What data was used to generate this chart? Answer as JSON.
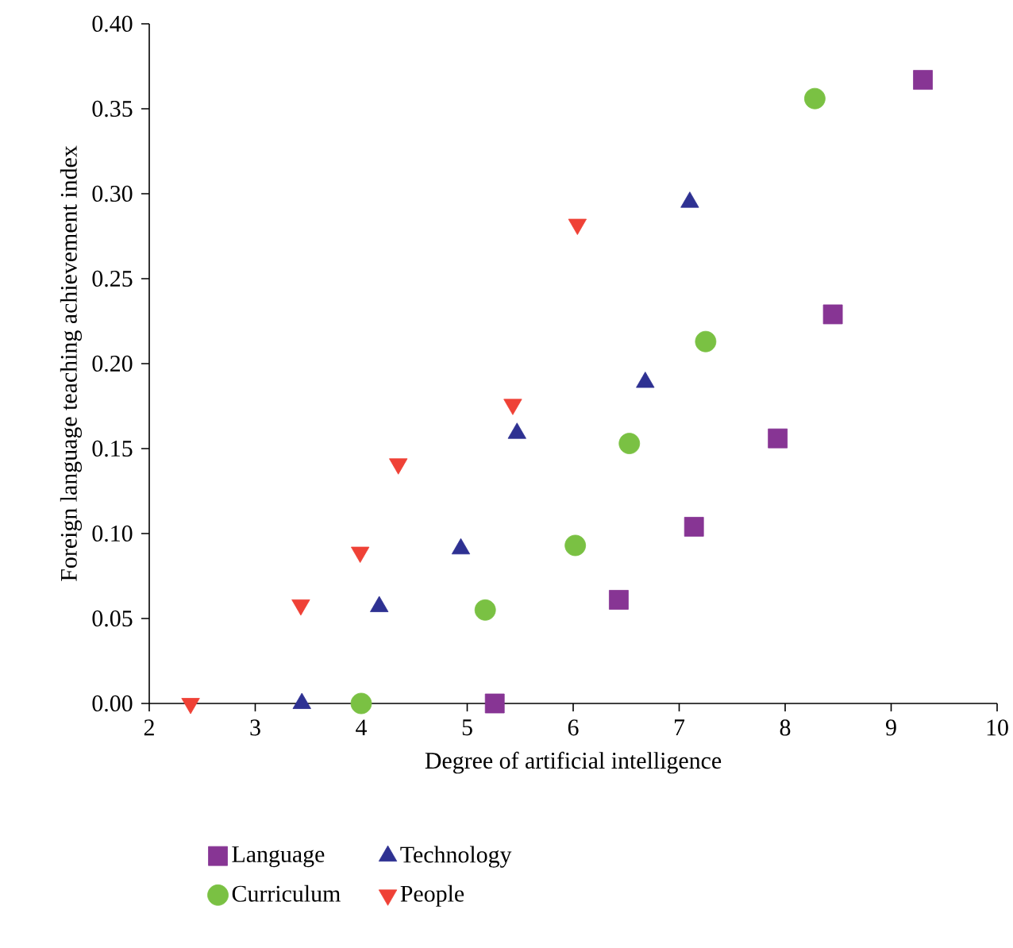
{
  "chart_data": {
    "type": "scatter",
    "xlabel": "Degree of artificial intelligence",
    "ylabel": "Foreign language teaching achievement index",
    "xlim": [
      2,
      10
    ],
    "ylim": [
      0,
      0.4
    ],
    "xticks": [
      2,
      3,
      4,
      5,
      6,
      7,
      8,
      9,
      10
    ],
    "yticks": [
      {
        "value": 0,
        "label": "0.00"
      },
      {
        "value": 0.05,
        "label": "0.05"
      },
      {
        "value": 0.1,
        "label": "0.10"
      },
      {
        "value": 0.15,
        "label": "0.15"
      },
      {
        "value": 0.2,
        "label": "0.20"
      },
      {
        "value": 0.25,
        "label": "0.25"
      },
      {
        "value": 0.3,
        "label": "0.30"
      },
      {
        "value": 0.35,
        "label": "0.35"
      },
      {
        "value": 0.4,
        "label": "0.40"
      }
    ],
    "grid": false,
    "legend": "bottom",
    "series": [
      {
        "name": "Language",
        "color": "#873594",
        "marker": "square",
        "x": [
          5.26,
          6.43,
          7.14,
          7.93,
          8.45,
          9.3
        ],
        "values": [
          0,
          0.061,
          0.104,
          0.156,
          0.229,
          0.367
        ]
      },
      {
        "name": "Technology",
        "color": "#2e3192",
        "marker": "triangle",
        "x": [
          3.44,
          4.17,
          4.94,
          5.47,
          6.68,
          7.1
        ],
        "values": [
          0,
          0.057,
          0.091,
          0.159,
          0.189,
          0.295
        ]
      },
      {
        "name": "Curriculum",
        "color": "#7ac143",
        "marker": "circle",
        "x": [
          4.0,
          5.17,
          6.02,
          6.53,
          7.25,
          8.28
        ],
        "values": [
          0,
          0.055,
          0.093,
          0.153,
          0.213,
          0.356
        ]
      },
      {
        "name": "People",
        "color": "#ef4136",
        "marker": "triangle_down",
        "x": [
          2.39,
          3.43,
          3.99,
          4.35,
          5.43,
          6.04
        ],
        "values": [
          0,
          0.058,
          0.089,
          0.141,
          0.176,
          0.282
        ]
      }
    ]
  }
}
